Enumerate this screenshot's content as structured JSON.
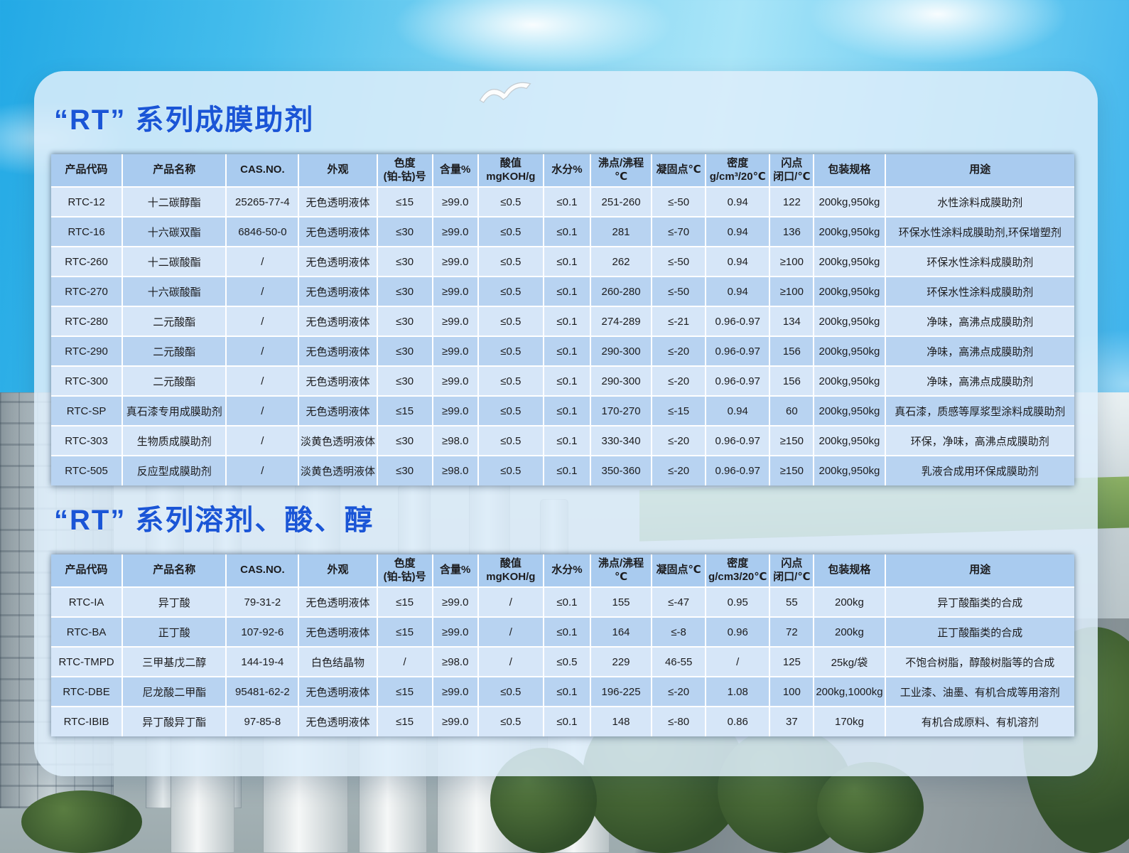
{
  "page": {
    "title_film": "“RT” 系列成膜助剂",
    "title_solvent": "“RT” 系列溶剂、酸、醇"
  },
  "colors": {
    "title-blue": "#1a55d6",
    "header-row": "#a9cbef",
    "row-light": "#d6e6f8",
    "row-dark": "#b8d3f1",
    "panel": "#dcedf9",
    "sky-blue": "#2fb2e8"
  },
  "table_film": {
    "headers": [
      "产品代码",
      "产品名称",
      "CAS.NO.",
      "外观",
      "色度\n(铂-钴)号",
      "含量%",
      "酸值\nmgKOH/g",
      "水分%",
      "沸点/沸程\n℃",
      "凝固点℃",
      "密度\ng/cm³/20℃",
      "闪点\n闭口/℃",
      "包装规格",
      "用途"
    ],
    "rows": [
      [
        "RTC-12",
        "十二碳醇酯",
        "25265-77-4",
        "无色透明液体",
        "≤15",
        "≥99.0",
        "≤0.5",
        "≤0.1",
        "251-260",
        "≤-50",
        "0.94",
        "122",
        "200kg,950kg",
        "水性涂料成膜助剂"
      ],
      [
        "RTC-16",
        "十六碳双酯",
        "6846-50-0",
        "无色透明液体",
        "≤30",
        "≥99.0",
        "≤0.5",
        "≤0.1",
        "281",
        "≤-70",
        "0.94",
        "136",
        "200kg,950kg",
        "环保水性涂料成膜助剂,环保增塑剂"
      ],
      [
        "RTC-260",
        "十二碳酸酯",
        "/",
        "无色透明液体",
        "≤30",
        "≥99.0",
        "≤0.5",
        "≤0.1",
        "262",
        "≤-50",
        "0.94",
        "≥100",
        "200kg,950kg",
        "环保水性涂料成膜助剂"
      ],
      [
        "RTC-270",
        "十六碳酸酯",
        "/",
        "无色透明液体",
        "≤30",
        "≥99.0",
        "≤0.5",
        "≤0.1",
        "260-280",
        "≤-50",
        "0.94",
        "≥100",
        "200kg,950kg",
        "环保水性涂料成膜助剂"
      ],
      [
        "RTC-280",
        "二元酸酯",
        "/",
        "无色透明液体",
        "≤30",
        "≥99.0",
        "≤0.5",
        "≤0.1",
        "274-289",
        "≤-21",
        "0.96-0.97",
        "134",
        "200kg,950kg",
        "净味，高沸点成膜助剂"
      ],
      [
        "RTC-290",
        "二元酸酯",
        "/",
        "无色透明液体",
        "≤30",
        "≥99.0",
        "≤0.5",
        "≤0.1",
        "290-300",
        "≤-20",
        "0.96-0.97",
        "156",
        "200kg,950kg",
        "净味，高沸点成膜助剂"
      ],
      [
        "RTC-300",
        "二元酸酯",
        "/",
        "无色透明液体",
        "≤30",
        "≥99.0",
        "≤0.5",
        "≤0.1",
        "290-300",
        "≤-20",
        "0.96-0.97",
        "156",
        "200kg,950kg",
        "净味，高沸点成膜助剂"
      ],
      [
        "RTC-SP",
        "真石漆专用成膜助剂",
        "/",
        "无色透明液体",
        "≤15",
        "≥99.0",
        "≤0.5",
        "≤0.1",
        "170-270",
        "≤-15",
        "0.94",
        "60",
        "200kg,950kg",
        "真石漆，质感等厚浆型涂料成膜助剂"
      ],
      [
        "RTC-303",
        "生物质成膜助剂",
        "/",
        "淡黄色透明液体",
        "≤30",
        "≥98.0",
        "≤0.5",
        "≤0.1",
        "330-340",
        "≤-20",
        "0.96-0.97",
        "≥150",
        "200kg,950kg",
        "环保，净味，高沸点成膜助剂"
      ],
      [
        "RTC-505",
        "反应型成膜助剂",
        "/",
        "淡黄色透明液体",
        "≤30",
        "≥98.0",
        "≤0.5",
        "≤0.1",
        "350-360",
        "≤-20",
        "0.96-0.97",
        "≥150",
        "200kg,950kg",
        "乳液合成用环保成膜助剂"
      ]
    ]
  },
  "table_solvent": {
    "headers": [
      "产品代码",
      "产品名称",
      "CAS.NO.",
      "外观",
      "色度\n(铂-钴)号",
      "含量%",
      "酸值\nmgKOH/g",
      "水分%",
      "沸点/沸程\n℃",
      "凝固点℃",
      "密度\ng/cm3/20℃",
      "闪点\n闭口/℃",
      "包装规格",
      "用途"
    ],
    "rows": [
      [
        "RTC-IA",
        "异丁酸",
        "79-31-2",
        "无色透明液体",
        "≤15",
        "≥99.0",
        "/",
        "≤0.1",
        "155",
        "≤-47",
        "0.95",
        "55",
        "200kg",
        "异丁酸酯类的合成"
      ],
      [
        "RTC-BA",
        "正丁酸",
        "107-92-6",
        "无色透明液体",
        "≤15",
        "≥99.0",
        "/",
        "≤0.1",
        "164",
        "≤-8",
        "0.96",
        "72",
        "200kg",
        "正丁酸酯类的合成"
      ],
      [
        "RTC-TMPD",
        "三甲基戊二醇",
        "144-19-4",
        "白色结晶物",
        "/",
        "≥98.0",
        "/",
        "≤0.5",
        "229",
        "46-55",
        "/",
        "125",
        "25kg/袋",
        "不饱合树脂，醇酸树脂等的合成"
      ],
      [
        "RTC-DBE",
        "尼龙酸二甲酯",
        "95481-62-2",
        "无色透明液体",
        "≤15",
        "≥99.0",
        "≤0.5",
        "≤0.1",
        "196-225",
        "≤-20",
        "1.08",
        "100",
        "200kg,1000kg",
        "工业漆、油墨、有机合成等用溶剂"
      ],
      [
        "RTC-IBIB",
        "异丁酸异丁酯",
        "97-85-8",
        "无色透明液体",
        "≤15",
        "≥99.0",
        "≤0.5",
        "≤0.1",
        "148",
        "≤-80",
        "0.86",
        "37",
        "170kg",
        "有机合成原料、有机溶剂"
      ]
    ]
  }
}
